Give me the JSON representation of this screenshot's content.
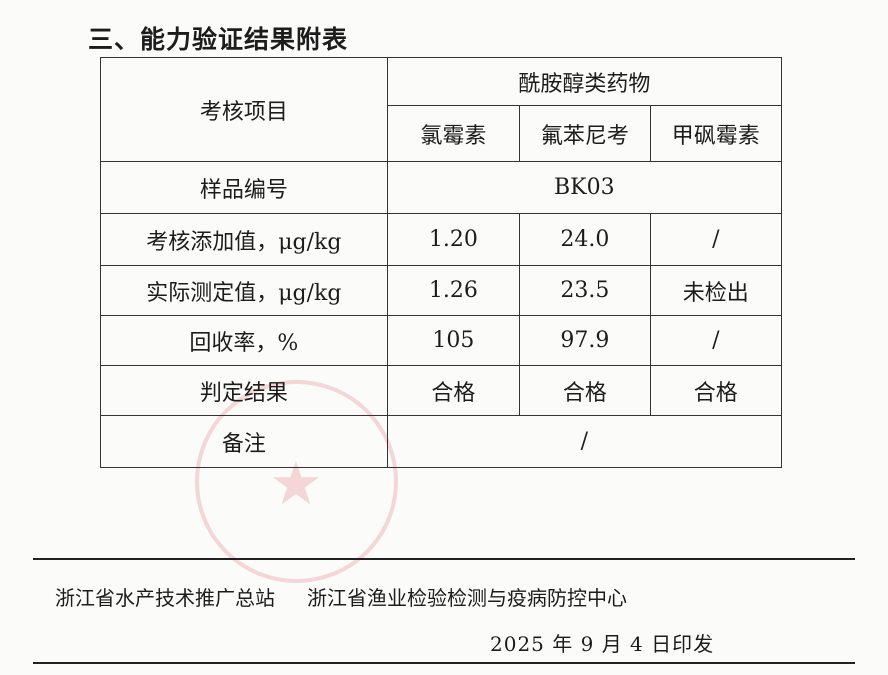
{
  "section_title": "三、能力验证结果附表",
  "table": {
    "item_header": "考核项目",
    "group_header": "酰胺醇类药物",
    "drugs": [
      "氯霉素",
      "氟苯尼考",
      "甲砜霉素"
    ],
    "sample_label": "样品编号",
    "sample_id": "BK03",
    "rows": [
      {
        "label": "考核添加值，μg/kg",
        "values": [
          "1.20",
          "24.0",
          "/"
        ]
      },
      {
        "label": "实际测定值，μg/kg",
        "values": [
          "1.26",
          "23.5",
          "未检出"
        ]
      },
      {
        "label": "回收率，%",
        "values": [
          "105",
          "97.9",
          "/"
        ]
      },
      {
        "label": "判定结果",
        "values": [
          "合格",
          "合格",
          "合格"
        ]
      }
    ],
    "remark_label": "备注",
    "remark_value": "/"
  },
  "footer": {
    "issuer_1": "浙江省水产技术推广总站",
    "issuer_2": "浙江省渔业检验检测与疫病防控中心",
    "date": "2025 年 9 月 4 日印发"
  }
}
